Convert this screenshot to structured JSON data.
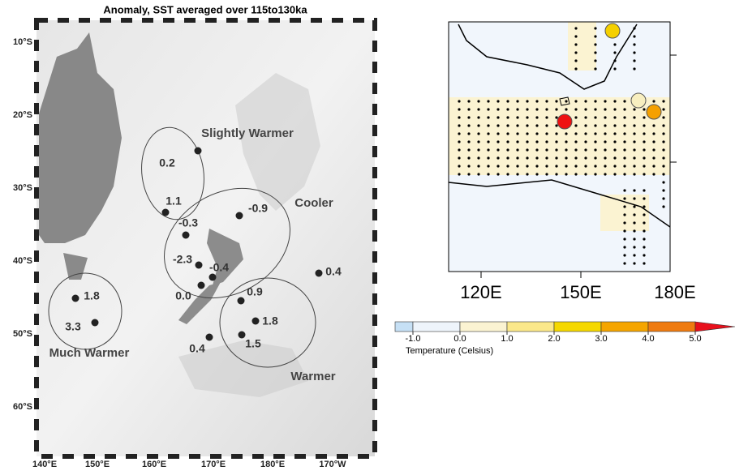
{
  "left_map": {
    "title": "Anomaly, SST averaged over 115to130ka",
    "lat_labels": [
      "10°S",
      "20°S",
      "30°S",
      "40°S",
      "50°S",
      "60°S"
    ],
    "lon_labels": [
      "140°E",
      "150°E",
      "160°E",
      "170°E",
      "180°E",
      "170°W"
    ],
    "regions": [
      "Slightly Warmer",
      "Cooler",
      "Much Warmer",
      "Warmer"
    ],
    "sites": [
      "0.2",
      "1.1",
      "-0.3",
      "-0.9",
      "-2.3",
      "-0.4",
      "0.0",
      "0.4",
      "1.8",
      "3.3",
      "0.9",
      "1.8",
      "1.5",
      "0.4"
    ]
  },
  "right_map": {
    "lon_labels": [
      "120E",
      "150E",
      "180E"
    ]
  },
  "colorbar": {
    "label": "Temperature (Celsius)",
    "ticks": [
      {
        "value": -1,
        "label": "-1.0"
      },
      {
        "value": 0,
        "label": "0.0"
      },
      {
        "value": 1,
        "label": "1.0"
      },
      {
        "value": 2,
        "label": "2.0"
      },
      {
        "value": 3,
        "label": "3.0"
      },
      {
        "value": 4,
        "label": "4.0"
      },
      {
        "value": 5,
        "label": "5.0"
      }
    ],
    "colors": [
      "#c6e0f5",
      "#eef4fb",
      "#fbf3d2",
      "#fbe88a",
      "#f5d800",
      "#f5a500",
      "#ef7b10",
      "#e8101c"
    ]
  }
}
